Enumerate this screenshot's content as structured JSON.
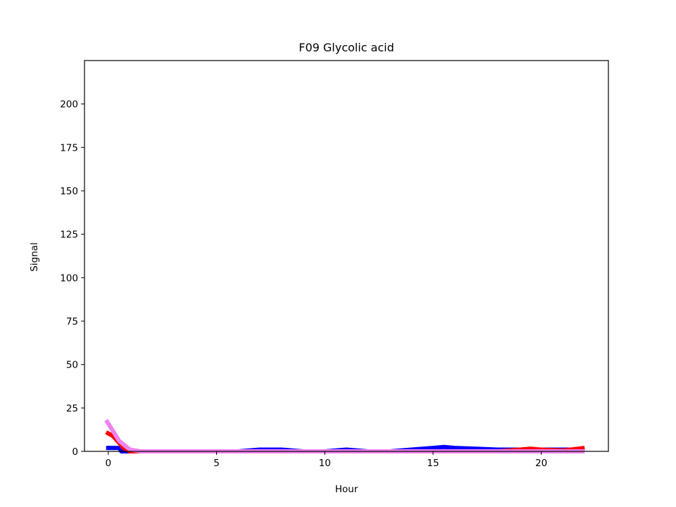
{
  "chart_data": {
    "type": "line",
    "title": "F09 Glycolic acid",
    "xlabel": "Hour",
    "ylabel": "Signal",
    "xlim": [
      -1.1,
      23.1
    ],
    "ylim": [
      0,
      225
    ],
    "xticks": [
      0,
      5,
      10,
      15,
      20
    ],
    "yticks": [
      0,
      25,
      50,
      75,
      100,
      125,
      150,
      175,
      200
    ],
    "grid": false,
    "series": [
      {
        "color": "#0000ff",
        "x": [
          -0.1,
          0.5,
          0.6,
          1,
          2,
          3,
          4,
          5,
          6,
          7,
          8,
          9,
          10,
          11,
          12,
          13,
          14,
          15,
          15.5,
          16,
          17,
          18,
          19,
          20,
          21,
          22
        ],
        "values": [
          2,
          2,
          0,
          0,
          0,
          0,
          0,
          0,
          0,
          1,
          1,
          0,
          0,
          1,
          0,
          0,
          1,
          2,
          2.5,
          2,
          1.5,
          1,
          1,
          1,
          1,
          1
        ]
      },
      {
        "color": "#ff0000",
        "x": [
          -0.1,
          0.2,
          0.5,
          0.7,
          1,
          2,
          3,
          4,
          5,
          6,
          7,
          8,
          9,
          10,
          11,
          12,
          13,
          14,
          15,
          16,
          17,
          18,
          19,
          19.5,
          20,
          21,
          22
        ],
        "values": [
          11,
          9,
          5,
          2,
          0,
          0,
          0,
          0,
          0,
          0,
          0,
          0,
          0,
          0,
          0,
          0,
          0,
          0,
          0,
          0,
          0,
          0,
          1,
          1.5,
          1,
          0.5,
          2
        ]
      },
      {
        "color": "#ee82ee",
        "x": [
          -0.1,
          0.2,
          0.5,
          0.8,
          1,
          1.5,
          2,
          3,
          4,
          5,
          6,
          7,
          8,
          9,
          10,
          11,
          12,
          13,
          14,
          15,
          16,
          17,
          18,
          19,
          20,
          21,
          22
        ],
        "values": [
          18,
          12,
          6,
          3,
          1,
          0,
          0,
          0,
          0,
          0,
          0,
          0,
          0,
          0,
          0,
          0,
          0,
          0,
          0,
          0,
          0,
          0,
          0,
          0,
          0,
          0,
          0
        ]
      }
    ]
  }
}
